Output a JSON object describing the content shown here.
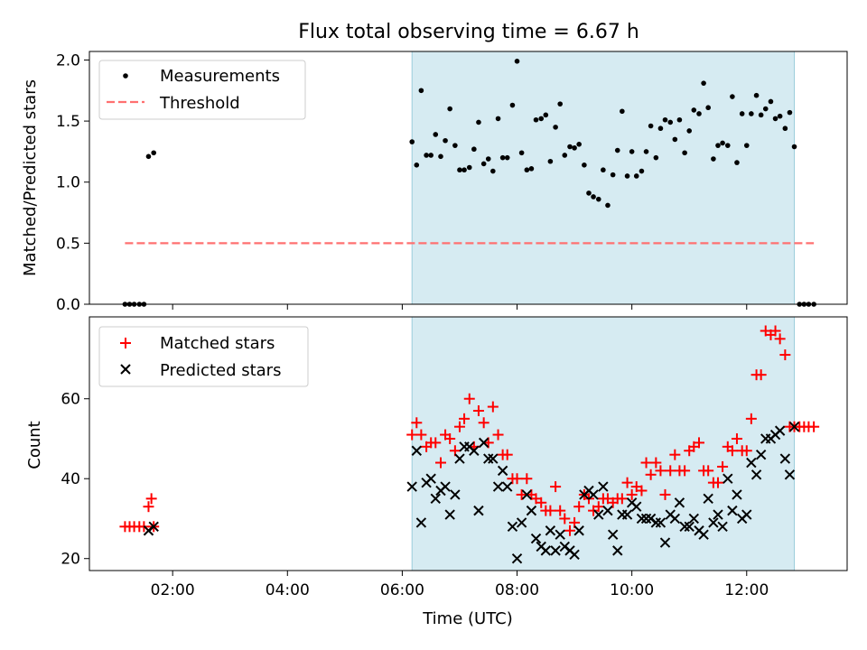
{
  "chart_data": [
    {
      "type": "scatter",
      "title": "Flux total observing time = 6.67 h",
      "xlabel": "",
      "ylabel": "Matched/Predicted stars",
      "ylim": [
        0,
        2.07
      ],
      "xlim": [
        0.55,
        13.75
      ],
      "x_units": "hours UTC",
      "yticks": [
        0.0,
        0.5,
        1.0,
        1.5,
        2.0
      ],
      "ytick_labels": [
        "0.0",
        "0.5",
        "1.0",
        "1.5",
        "2.0"
      ],
      "shaded_span": [
        6.17,
        12.83
      ],
      "legend": {
        "placement": "upper-left",
        "entries": [
          "Measurements",
          "Threshold"
        ]
      },
      "series": [
        {
          "name": "Measurements",
          "marker": "dot",
          "color": "#000000",
          "x": [
            1.17,
            1.25,
            1.33,
            1.42,
            1.5,
            1.58,
            1.67,
            6.17,
            6.25,
            6.33,
            6.42,
            6.5,
            6.58,
            6.67,
            6.75,
            6.83,
            6.92,
            7.0,
            7.08,
            7.17,
            7.25,
            7.33,
            7.42,
            7.5,
            7.58,
            7.67,
            7.75,
            7.83,
            7.92,
            8.0,
            8.08,
            8.17,
            8.25,
            8.33,
            8.42,
            8.5,
            8.58,
            8.67,
            8.75,
            8.83,
            8.92,
            9.0,
            9.08,
            9.17,
            9.25,
            9.33,
            9.42,
            9.5,
            9.58,
            9.67,
            9.75,
            9.83,
            9.92,
            10.0,
            10.08,
            10.17,
            10.25,
            10.33,
            10.42,
            10.5,
            10.58,
            10.67,
            10.75,
            10.83,
            10.92,
            11.0,
            11.08,
            11.17,
            11.25,
            11.33,
            11.42,
            11.5,
            11.58,
            11.67,
            11.75,
            11.83,
            11.92,
            12.0,
            12.08,
            12.17,
            12.25,
            12.33,
            12.42,
            12.5,
            12.58,
            12.67,
            12.75,
            12.83,
            12.92,
            13.0,
            13.08,
            13.17
          ],
          "y": [
            0.0,
            0.0,
            0.0,
            0.0,
            0.0,
            1.21,
            1.24,
            1.33,
            1.14,
            1.75,
            1.22,
            1.22,
            1.39,
            1.21,
            1.34,
            1.6,
            1.3,
            1.1,
            1.1,
            1.12,
            1.27,
            1.49,
            1.15,
            1.19,
            1.09,
            1.52,
            1.2,
            1.2,
            1.63,
            1.99,
            1.24,
            1.1,
            1.11,
            1.51,
            1.52,
            1.55,
            1.17,
            1.45,
            1.64,
            1.22,
            1.29,
            1.28,
            1.31,
            1.14,
            0.91,
            0.88,
            0.86,
            1.1,
            0.81,
            1.06,
            1.26,
            1.58,
            1.05,
            1.25,
            1.05,
            1.09,
            1.25,
            1.46,
            1.2,
            1.44,
            1.51,
            1.49,
            1.35,
            1.51,
            1.24,
            1.42,
            1.59,
            1.56,
            1.81,
            1.61,
            1.19,
            1.3,
            1.32,
            1.3,
            1.7,
            1.16,
            1.56,
            1.3,
            1.56,
            1.71,
            1.55,
            1.6,
            1.66,
            1.52,
            1.54,
            1.44,
            1.57,
            1.29,
            0.0,
            0.0,
            0.0,
            0.0
          ]
        },
        {
          "name": "Threshold",
          "marker": "dashed-line",
          "color": "#ff7070",
          "x": [
            1.17,
            13.17
          ],
          "y": [
            0.5,
            0.5
          ]
        }
      ]
    },
    {
      "type": "scatter",
      "title": "",
      "xlabel": "Time (UTC)",
      "ylabel": "Count",
      "ylim": [
        17,
        80.5
      ],
      "xlim": [
        0.55,
        13.75
      ],
      "x_units": "hours UTC",
      "yticks": [
        20,
        40,
        60
      ],
      "ytick_labels": [
        "20",
        "40",
        "60"
      ],
      "xticks": [
        2,
        4,
        6,
        8,
        10,
        12
      ],
      "xtick_labels": [
        "02:00",
        "04:00",
        "06:00",
        "08:00",
        "10:00",
        "12:00"
      ],
      "shaded_span": [
        6.17,
        12.83
      ],
      "legend": {
        "placement": "upper-left",
        "entries": [
          "Matched stars",
          "Predicted stars"
        ]
      },
      "series": [
        {
          "name": "Matched stars",
          "marker": "plus",
          "color": "#ff0000",
          "x": [
            1.17,
            1.25,
            1.33,
            1.42,
            1.5,
            1.58,
            1.63,
            1.67,
            6.17,
            6.25,
            6.33,
            6.42,
            6.5,
            6.58,
            6.67,
            6.75,
            6.83,
            6.92,
            7.0,
            7.08,
            7.17,
            7.25,
            7.33,
            7.42,
            7.5,
            7.58,
            7.67,
            7.75,
            7.83,
            7.92,
            8.0,
            8.08,
            8.17,
            8.25,
            8.33,
            8.42,
            8.5,
            8.58,
            8.67,
            8.75,
            8.83,
            8.92,
            9.0,
            9.08,
            9.17,
            9.25,
            9.33,
            9.42,
            9.5,
            9.58,
            9.67,
            9.75,
            9.83,
            9.92,
            10.0,
            10.08,
            10.17,
            10.25,
            10.33,
            10.42,
            10.5,
            10.58,
            10.67,
            10.75,
            10.83,
            10.92,
            11.0,
            11.08,
            11.17,
            11.25,
            11.33,
            11.42,
            11.5,
            11.58,
            11.67,
            11.75,
            11.83,
            11.92,
            12.0,
            12.08,
            12.17,
            12.25,
            12.33,
            12.42,
            12.5,
            12.58,
            12.67,
            12.75,
            12.83,
            12.92,
            13.0,
            13.08,
            13.17
          ],
          "y": [
            28,
            28,
            28,
            28,
            28,
            33,
            35,
            28,
            51,
            54,
            51,
            48,
            49,
            49,
            44,
            51,
            50,
            47,
            53,
            55,
            60,
            48,
            57,
            54,
            49,
            58,
            51,
            46,
            46,
            40,
            40,
            36,
            40,
            36,
            35,
            34,
            32,
            32,
            38,
            32,
            30,
            27,
            29,
            33,
            36,
            35,
            32,
            33,
            35,
            35,
            34,
            35,
            35,
            39,
            36,
            38,
            37,
            44,
            41,
            44,
            42,
            36,
            42,
            46,
            42,
            42,
            47,
            48,
            49,
            42,
            42,
            39,
            39,
            43,
            48,
            47,
            50,
            47,
            47,
            55,
            66,
            66,
            77,
            76,
            77,
            75,
            71,
            53,
            53,
            53,
            53,
            53,
            53
          ]
        },
        {
          "name": "Predicted stars",
          "marker": "x",
          "color": "#000000",
          "x": [
            1.58,
            1.67,
            6.17,
            6.25,
            6.33,
            6.42,
            6.5,
            6.58,
            6.67,
            6.75,
            6.83,
            6.92,
            7.0,
            7.08,
            7.17,
            7.25,
            7.33,
            7.42,
            7.5,
            7.58,
            7.67,
            7.75,
            7.83,
            7.92,
            8.0,
            8.08,
            8.17,
            8.25,
            8.33,
            8.42,
            8.5,
            8.58,
            8.67,
            8.75,
            8.83,
            8.92,
            9.0,
            9.08,
            9.17,
            9.25,
            9.33,
            9.42,
            9.5,
            9.58,
            9.67,
            9.75,
            9.83,
            9.92,
            10.0,
            10.08,
            10.17,
            10.25,
            10.33,
            10.42,
            10.5,
            10.58,
            10.67,
            10.75,
            10.83,
            10.92,
            11.0,
            11.08,
            11.17,
            11.25,
            11.33,
            11.42,
            11.5,
            11.58,
            11.67,
            11.75,
            11.83,
            11.92,
            12.0,
            12.08,
            12.17,
            12.25,
            12.33,
            12.42,
            12.5,
            12.58,
            12.67,
            12.75,
            12.83
          ],
          "y": [
            27,
            28,
            38,
            47,
            29,
            39,
            40,
            35,
            37,
            38,
            31,
            36,
            45,
            48,
            48,
            47,
            32,
            49,
            45,
            45,
            38,
            42,
            38,
            28,
            20,
            29,
            36,
            32,
            25,
            23,
            22,
            27,
            22,
            26,
            23,
            22,
            21,
            27,
            36,
            37,
            36,
            31,
            38,
            32,
            26,
            22,
            31,
            31,
            34,
            33,
            30,
            30,
            30,
            29,
            29,
            24,
            31,
            30,
            34,
            28,
            28,
            30,
            27,
            26,
            35,
            29,
            31,
            28,
            40,
            32,
            36,
            30,
            31,
            44,
            41,
            46,
            50,
            50,
            51,
            52,
            45,
            41,
            53
          ]
        }
      ]
    }
  ]
}
